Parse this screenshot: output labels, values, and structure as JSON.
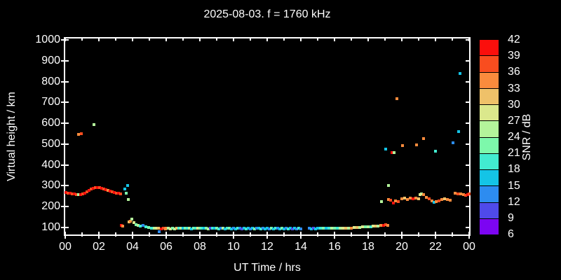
{
  "title": "2025-08-03. f = 1760 kHz",
  "axes": {
    "xlabel": "UT Time / hrs",
    "ylabel": "Virtual height / km",
    "x_tick_hours": [
      0,
      2,
      4,
      6,
      8,
      10,
      12,
      14,
      16,
      18,
      20,
      22,
      24
    ],
    "x_tick_labels": [
      "00",
      "02",
      "04",
      "06",
      "08",
      "10",
      "12",
      "14",
      "16",
      "18",
      "20",
      "22",
      "00"
    ],
    "x_minor_tick_hours": [
      1,
      3,
      5,
      7,
      9,
      11,
      13,
      15,
      17,
      19,
      21,
      23
    ],
    "y_tick_km": [
      100,
      200,
      300,
      400,
      500,
      600,
      700,
      800,
      900,
      1000
    ],
    "y_tick_labels": [
      "100",
      "200",
      "300",
      "400",
      "500",
      "600",
      "700",
      "800",
      "900",
      "1000"
    ]
  },
  "colorbar": {
    "label": "SNR / dB",
    "tick_labels_top_to_bottom": [
      "42",
      "39",
      "36",
      "33",
      "30",
      "27",
      "24",
      "21",
      "18",
      "15",
      "12",
      "9",
      "6"
    ],
    "palette_low_to_high": [
      "#7c05f2",
      "#4f4aea",
      "#2d8cf0",
      "#14c4e6",
      "#42ebd0",
      "#7df8ab",
      "#b4f49b",
      "#dbe88c",
      "#efc169",
      "#fa8b3d",
      "#f94d1f",
      "#fb0f0c"
    ],
    "min_db": 6,
    "max_db": 42,
    "step_db": 3
  },
  "chart_data": {
    "type": "scatter",
    "title": "2025-08-03. f = 1760 kHz",
    "xlabel": "UT Time / hrs",
    "ylabel": "Virtual height / km",
    "x_range_hours": [
      0,
      24
    ],
    "y_range_km": [
      66,
      1007
    ],
    "grid": false,
    "color_scale": {
      "label": "SNR / dB",
      "min": 6,
      "max": 42,
      "step": 3
    },
    "point_format": [
      "ut_hours",
      "virtual_height_km",
      "snr_db"
    ],
    "points": [
      [
        0.04,
        268,
        40
      ],
      [
        0.17,
        266,
        37.5
      ],
      [
        0.29,
        264,
        40
      ],
      [
        0.42,
        262,
        37.5
      ],
      [
        0.54,
        261,
        40
      ],
      [
        0.67,
        259,
        37.5
      ],
      [
        0.79,
        258,
        25.5
      ],
      [
        0.92,
        259,
        40
      ],
      [
        1.04,
        262,
        37.5
      ],
      [
        1.17,
        266,
        40
      ],
      [
        1.29,
        272,
        37.5
      ],
      [
        1.42,
        279,
        40
      ],
      [
        1.54,
        284,
        37.5
      ],
      [
        1.67,
        288,
        40
      ],
      [
        1.79,
        291,
        37.5
      ],
      [
        1.92,
        292,
        40
      ],
      [
        2.04,
        291,
        37.5
      ],
      [
        2.17,
        289,
        40
      ],
      [
        2.29,
        286,
        37.5
      ],
      [
        2.42,
        282,
        40
      ],
      [
        2.54,
        278,
        34.5
      ],
      [
        2.67,
        274,
        40
      ],
      [
        2.79,
        271,
        37.5
      ],
      [
        2.92,
        268,
        40
      ],
      [
        3.04,
        265,
        37.5
      ],
      [
        3.17,
        263,
        40
      ],
      [
        3.29,
        262,
        37.5
      ],
      [
        0.79,
        546,
        34.5
      ],
      [
        0.96,
        549,
        37.5
      ],
      [
        1.71,
        592,
        25.5
      ],
      [
        3.33,
        110,
        40
      ],
      [
        3.42,
        107,
        34.5
      ],
      [
        3.54,
        285,
        16.5
      ],
      [
        3.63,
        264,
        22.5
      ],
      [
        3.71,
        302,
        16.5
      ],
      [
        3.75,
        234,
        25.5
      ],
      [
        3.79,
        127,
        31.5
      ],
      [
        3.88,
        131,
        34.5
      ],
      [
        3.96,
        140,
        25.5
      ],
      [
        4.08,
        123,
        28.5
      ],
      [
        4.21,
        113,
        22.5
      ],
      [
        4.33,
        110,
        25.5
      ],
      [
        4.46,
        107,
        19.5
      ],
      [
        4.63,
        110,
        13.5
      ],
      [
        4.79,
        104,
        19.5
      ],
      [
        4.96,
        100,
        22.5
      ],
      [
        5.13,
        97,
        19.5
      ],
      [
        5.29,
        97,
        25.5
      ],
      [
        5.42,
        95,
        28.5
      ],
      [
        5.54,
        95,
        31.5
      ],
      [
        5.58,
        80,
        13.5
      ],
      [
        5.71,
        92,
        40
      ],
      [
        5.83,
        95,
        37.5
      ],
      [
        5.96,
        92,
        34.5
      ],
      [
        6.0,
        95,
        34.5
      ],
      [
        6.13,
        96,
        25.5
      ],
      [
        6.25,
        94,
        28.5
      ],
      [
        6.38,
        97,
        22.5
      ],
      [
        6.5,
        94,
        25.5
      ],
      [
        6.63,
        96,
        31.5
      ],
      [
        6.75,
        95,
        19.5
      ],
      [
        6.88,
        96,
        25.5
      ],
      [
        7.0,
        95,
        16.5
      ],
      [
        7.13,
        97,
        22.5
      ],
      [
        7.25,
        95,
        19.5
      ],
      [
        7.38,
        96,
        25.5
      ],
      [
        7.5,
        93,
        16.5
      ],
      [
        7.63,
        95,
        22.5
      ],
      [
        7.75,
        97,
        19.5
      ],
      [
        7.88,
        95,
        28.5
      ],
      [
        8.0,
        96,
        22.5
      ],
      [
        8.13,
        95,
        19.5
      ],
      [
        8.25,
        97,
        16.5
      ],
      [
        8.38,
        95,
        22.5
      ],
      [
        8.5,
        93,
        25.5
      ],
      [
        8.63,
        96,
        10.5
      ],
      [
        8.75,
        95,
        19.5
      ],
      [
        8.88,
        96,
        16.5
      ],
      [
        9.0,
        95,
        22.5
      ],
      [
        9.13,
        93,
        19.5
      ],
      [
        9.25,
        96,
        13.5
      ],
      [
        9.38,
        95,
        25.5
      ],
      [
        9.5,
        93,
        16.5
      ],
      [
        9.63,
        95,
        19.5
      ],
      [
        9.75,
        96,
        22.5
      ],
      [
        9.88,
        94,
        16.5
      ],
      [
        10.0,
        95,
        13.5
      ],
      [
        10.13,
        94,
        16.5
      ],
      [
        10.25,
        95,
        19.5
      ],
      [
        10.38,
        96,
        13.5
      ],
      [
        10.5,
        94,
        10.5
      ],
      [
        10.63,
        95,
        16.5
      ],
      [
        10.75,
        93,
        19.5
      ],
      [
        10.88,
        95,
        16.5
      ],
      [
        11.0,
        94,
        13.5
      ],
      [
        11.13,
        95,
        16.5
      ],
      [
        11.25,
        94,
        22.5
      ],
      [
        11.38,
        95,
        13.5
      ],
      [
        11.5,
        96,
        16.5
      ],
      [
        11.63,
        93,
        19.5
      ],
      [
        11.75,
        95,
        13.5
      ],
      [
        11.88,
        94,
        16.5
      ],
      [
        12.0,
        95,
        16.5
      ],
      [
        12.13,
        94,
        13.5
      ],
      [
        12.25,
        95,
        22.5
      ],
      [
        12.38,
        94,
        16.5
      ],
      [
        12.5,
        95,
        19.5
      ],
      [
        12.63,
        96,
        13.5
      ],
      [
        12.75,
        94,
        16.5
      ],
      [
        12.88,
        95,
        22.5
      ],
      [
        13.0,
        94,
        16.5
      ],
      [
        13.13,
        95,
        13.5
      ],
      [
        13.25,
        93,
        19.5
      ],
      [
        13.38,
        95,
        16.5
      ],
      [
        13.5,
        94,
        10.5
      ],
      [
        13.63,
        95,
        16.5
      ],
      [
        13.75,
        94,
        13.5
      ],
      [
        13.88,
        95,
        19.5
      ],
      [
        14.0,
        94,
        13.5
      ],
      [
        14.5,
        95,
        13.5
      ],
      [
        14.63,
        94,
        16.5
      ],
      [
        14.75,
        95,
        10.5
      ],
      [
        14.88,
        94,
        16.5
      ],
      [
        15.0,
        95,
        16.5
      ],
      [
        15.17,
        96,
        19.5
      ],
      [
        15.33,
        95,
        22.5
      ],
      [
        15.5,
        96,
        16.5
      ],
      [
        15.67,
        95,
        19.5
      ],
      [
        15.83,
        96,
        25.5
      ],
      [
        16.0,
        96,
        22.5
      ],
      [
        16.17,
        97,
        19.5
      ],
      [
        16.33,
        96,
        25.5
      ],
      [
        16.5,
        97,
        28.5
      ],
      [
        16.67,
        98,
        31.5
      ],
      [
        16.83,
        97,
        25.5
      ],
      [
        17.0,
        98,
        34.5
      ],
      [
        17.17,
        99,
        28.5
      ],
      [
        17.33,
        100,
        31.5
      ],
      [
        17.5,
        101,
        25.5
      ],
      [
        17.67,
        102,
        28.5
      ],
      [
        17.83,
        103,
        22.5
      ],
      [
        18.0,
        104,
        25.5
      ],
      [
        18.15,
        105,
        19.5
      ],
      [
        18.3,
        106,
        28.5
      ],
      [
        18.45,
        107,
        31.5
      ],
      [
        18.6,
        108,
        25.5
      ],
      [
        18.75,
        110,
        34.5
      ],
      [
        18.9,
        111,
        40
      ],
      [
        19.05,
        112,
        37.5
      ],
      [
        19.17,
        110,
        34.5
      ],
      [
        18.8,
        224,
        25.5
      ],
      [
        19.2,
        234,
        34.5
      ],
      [
        19.33,
        231,
        37.5
      ],
      [
        19.5,
        218,
        40
      ],
      [
        19.63,
        228,
        34.5
      ],
      [
        19.79,
        224,
        37.5
      ],
      [
        20.0,
        238,
        34.5
      ],
      [
        20.17,
        241,
        31.5
      ],
      [
        20.33,
        234,
        34.5
      ],
      [
        20.5,
        241,
        34.5
      ],
      [
        20.67,
        238,
        40
      ],
      [
        20.83,
        241,
        34.5
      ],
      [
        21.0,
        238,
        31.5
      ],
      [
        21.17,
        261,
        25.5
      ],
      [
        21.29,
        258,
        34.5
      ],
      [
        21.46,
        244,
        34.5
      ],
      [
        21.63,
        238,
        37.5
      ],
      [
        21.79,
        228,
        34.5
      ],
      [
        21.92,
        221,
        16.5
      ],
      [
        22.04,
        224,
        34.5
      ],
      [
        22.21,
        228,
        37.5
      ],
      [
        22.38,
        234,
        34.5
      ],
      [
        22.54,
        238,
        31.5
      ],
      [
        22.71,
        234,
        34.5
      ],
      [
        22.88,
        231,
        34.5
      ],
      [
        23.17,
        264,
        34.5
      ],
      [
        23.33,
        261,
        37.5
      ],
      [
        23.5,
        261,
        34.5
      ],
      [
        23.67,
        258,
        34.5
      ],
      [
        23.79,
        254,
        37.5
      ],
      [
        23.92,
        258,
        40
      ],
      [
        24.0,
        261,
        37.5
      ],
      [
        19.04,
        476,
        16.5
      ],
      [
        19.21,
        301,
        25.5
      ],
      [
        19.42,
        459,
        40
      ],
      [
        19.54,
        459,
        25.5
      ],
      [
        19.71,
        718,
        34.5
      ],
      [
        20.04,
        493,
        34.5
      ],
      [
        20.88,
        496,
        34.5
      ],
      [
        21.08,
        258,
        28.5
      ],
      [
        21.29,
        527,
        34.5
      ],
      [
        22.0,
        466,
        19.5
      ],
      [
        23.04,
        506,
        13.5
      ],
      [
        23.38,
        560,
        16.5
      ],
      [
        23.46,
        838,
        16.5
      ]
    ]
  }
}
